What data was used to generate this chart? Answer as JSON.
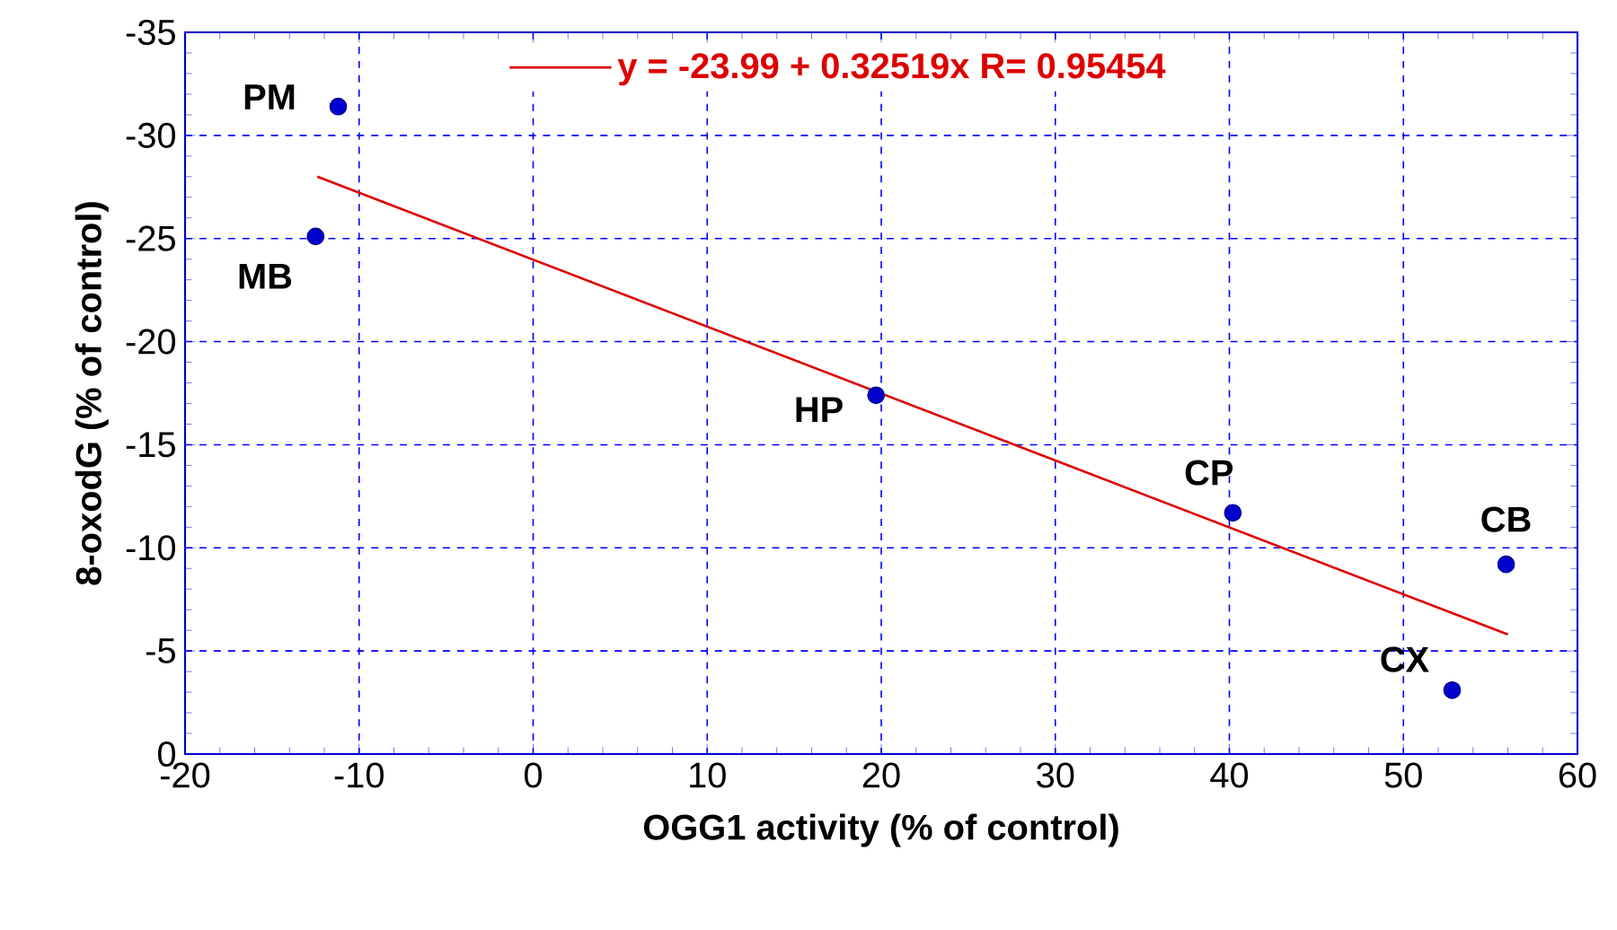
{
  "chart_data": {
    "type": "scatter",
    "xlabel": "OGG1 activity (% of control)",
    "ylabel": "8-oxodG (% of control)",
    "xlim": [
      -20,
      60
    ],
    "xticks": [
      -20,
      -10,
      0,
      10,
      20,
      30,
      40,
      50,
      60
    ],
    "ylim": [
      0,
      -35
    ],
    "yticks": [
      0,
      -5,
      -10,
      -15,
      -20,
      -25,
      -30,
      -35
    ],
    "grid": true,
    "legend": "top",
    "series": [
      {
        "marker": "circle",
        "color": "#0000cc",
        "x": [
          -11.2,
          -12.5,
          19.7,
          40.2,
          55.9,
          52.8
        ],
        "values": [
          -31.4,
          -25.1,
          -17.4,
          -11.7,
          -9.2,
          -3.1
        ]
      },
      {
        "type": "line",
        "marker": "none",
        "name": "y = -23.99 + 0.32519x   R= 0.95454",
        "color": "#dd0000",
        "x": [
          -12.4,
          56
        ],
        "values": [
          -28.0,
          -5.8
        ]
      }
    ],
    "annotations": [
      {
        "text": "PM",
        "x": -11.2,
        "y": -31.4
      },
      {
        "text": "MB",
        "x": -12.5,
        "y": -25.1
      },
      {
        "text": "HP",
        "x": 19.7,
        "y": -17.4
      },
      {
        "text": "CP",
        "x": 40.2,
        "y": -11.7
      },
      {
        "text": "CB",
        "x": 55.9,
        "y": -9.2
      },
      {
        "text": "CX",
        "x": 52.8,
        "y": -3.1
      }
    ]
  }
}
